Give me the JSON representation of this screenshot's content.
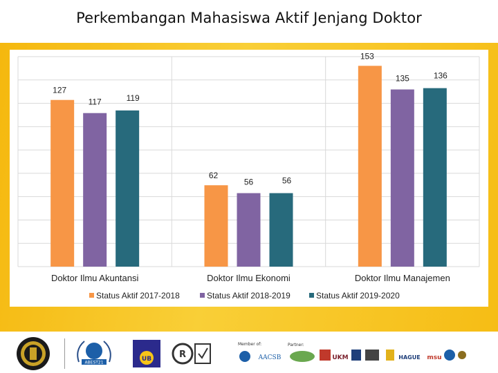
{
  "title": "Perkembangan Mahasiswa Aktif Jenjang Doktor",
  "colors": {
    "series": [
      "#f79646",
      "#8064a2",
      "#276a7c"
    ],
    "band": "#f7c418",
    "grid": "#d9d9d9"
  },
  "chart_data": {
    "type": "bar",
    "categories": [
      "Doktor Ilmu Akuntansi",
      "Doktor Ilmu Ekonomi",
      "Doktor Ilmu Manajemen"
    ],
    "series": [
      {
        "name": "Status Aktif 2017-2018",
        "values": [
          127,
          62,
          153
        ]
      },
      {
        "name": "Status Aktif 2018-2019",
        "values": [
          117,
          56,
          135
        ]
      },
      {
        "name": "Status Aktif 2019-2020",
        "values": [
          119,
          56,
          136
        ]
      }
    ],
    "ylim": [
      0,
      160
    ],
    "grid": true,
    "legend": "bottom"
  },
  "footer": {
    "logos": [
      "university-seal",
      "abest21",
      "ub-logo",
      "iso-certification",
      "aacsb",
      "ukm",
      "msu",
      "hague"
    ],
    "labels": {
      "abest": "ABEST21",
      "member": "Member of:",
      "partner": "Partner:",
      "aacsb": "AACSB",
      "ukm": "UKM",
      "msu": "msu",
      "hague": "HAGUE"
    }
  }
}
